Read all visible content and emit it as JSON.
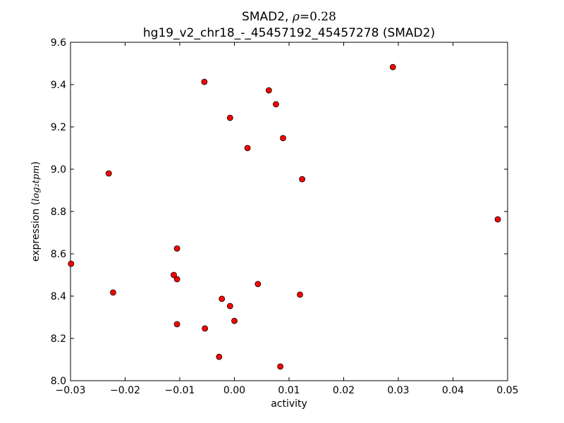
{
  "chart_data": {
    "type": "scatter",
    "title_gene": "SMAD2,",
    "title_rho": "ρ",
    "title_rho_value": "=0.28",
    "subtitle": "hg19_v2_chr18_-_45457192_45457278 (SMAD2)",
    "xlabel": "activity",
    "ylabel_prefix": "expression (",
    "ylabel_math": "log₂tpm",
    "ylabel_suffix": ")",
    "xlim": [
      -0.03,
      0.05
    ],
    "ylim": [
      8.0,
      9.6
    ],
    "xticks": [
      -0.03,
      -0.02,
      -0.01,
      0.0,
      0.01,
      0.02,
      0.03,
      0.04,
      0.05
    ],
    "xtick_labels": [
      "−0.03",
      "−0.02",
      "−0.01",
      "0.00",
      "0.01",
      "0.02",
      "0.03",
      "0.04",
      "0.05"
    ],
    "yticks": [
      8.0,
      8.2,
      8.4,
      8.6,
      8.8,
      9.0,
      9.2,
      9.4,
      9.6
    ],
    "ytick_labels": [
      "8.0",
      "8.2",
      "8.4",
      "8.6",
      "8.8",
      "9.0",
      "9.2",
      "9.4",
      "9.6"
    ],
    "grid": false,
    "marker_color": "#ff0000",
    "marker_edge": "#000000",
    "points": [
      {
        "x": -0.0299,
        "y": 8.553
      },
      {
        "x": -0.023,
        "y": 8.98
      },
      {
        "x": -0.0222,
        "y": 8.417
      },
      {
        "x": -0.0111,
        "y": 8.5
      },
      {
        "x": -0.0105,
        "y": 8.625
      },
      {
        "x": -0.0105,
        "y": 8.48
      },
      {
        "x": -0.0105,
        "y": 8.267
      },
      {
        "x": -0.0055,
        "y": 9.413
      },
      {
        "x": -0.0054,
        "y": 8.247
      },
      {
        "x": -0.0028,
        "y": 8.113
      },
      {
        "x": -0.0023,
        "y": 8.387
      },
      {
        "x": -0.0008,
        "y": 9.243
      },
      {
        "x": -0.0008,
        "y": 8.353
      },
      {
        "x": 0.0,
        "y": 8.283
      },
      {
        "x": 0.0024,
        "y": 9.1
      },
      {
        "x": 0.0043,
        "y": 8.457
      },
      {
        "x": 0.0063,
        "y": 9.373
      },
      {
        "x": 0.0076,
        "y": 9.307
      },
      {
        "x": 0.0084,
        "y": 8.067
      },
      {
        "x": 0.0089,
        "y": 9.147
      },
      {
        "x": 0.012,
        "y": 8.407
      },
      {
        "x": 0.0124,
        "y": 8.953
      },
      {
        "x": 0.029,
        "y": 9.483
      },
      {
        "x": 0.0482,
        "y": 8.763
      }
    ]
  }
}
